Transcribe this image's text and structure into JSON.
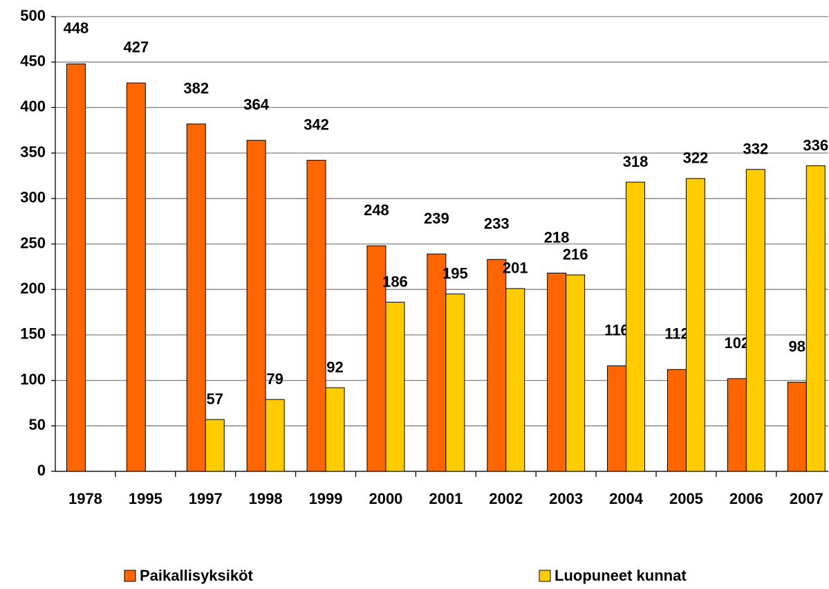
{
  "chart_data": {
    "type": "bar",
    "categories": [
      "1978",
      "1995",
      "1997",
      "1998",
      "1999",
      "2000",
      "2001",
      "2002",
      "2003",
      "2004",
      "2005",
      "2006",
      "2007"
    ],
    "series": [
      {
        "name": "Paikallisyksiköt",
        "color": "#ff6600",
        "values": [
          448,
          427,
          382,
          364,
          342,
          248,
          239,
          233,
          218,
          116,
          112,
          102,
          98
        ]
      },
      {
        "name": "Luopuneet kunnat",
        "color": "#ffcc00",
        "values": [
          null,
          null,
          57,
          79,
          92,
          186,
          195,
          201,
          216,
          318,
          322,
          332,
          336
        ]
      }
    ],
    "ylim": [
      0,
      500
    ],
    "yticks": [
      0,
      50,
      100,
      150,
      200,
      250,
      300,
      350,
      400,
      450,
      500
    ],
    "grid": true,
    "legend": "bottom"
  }
}
